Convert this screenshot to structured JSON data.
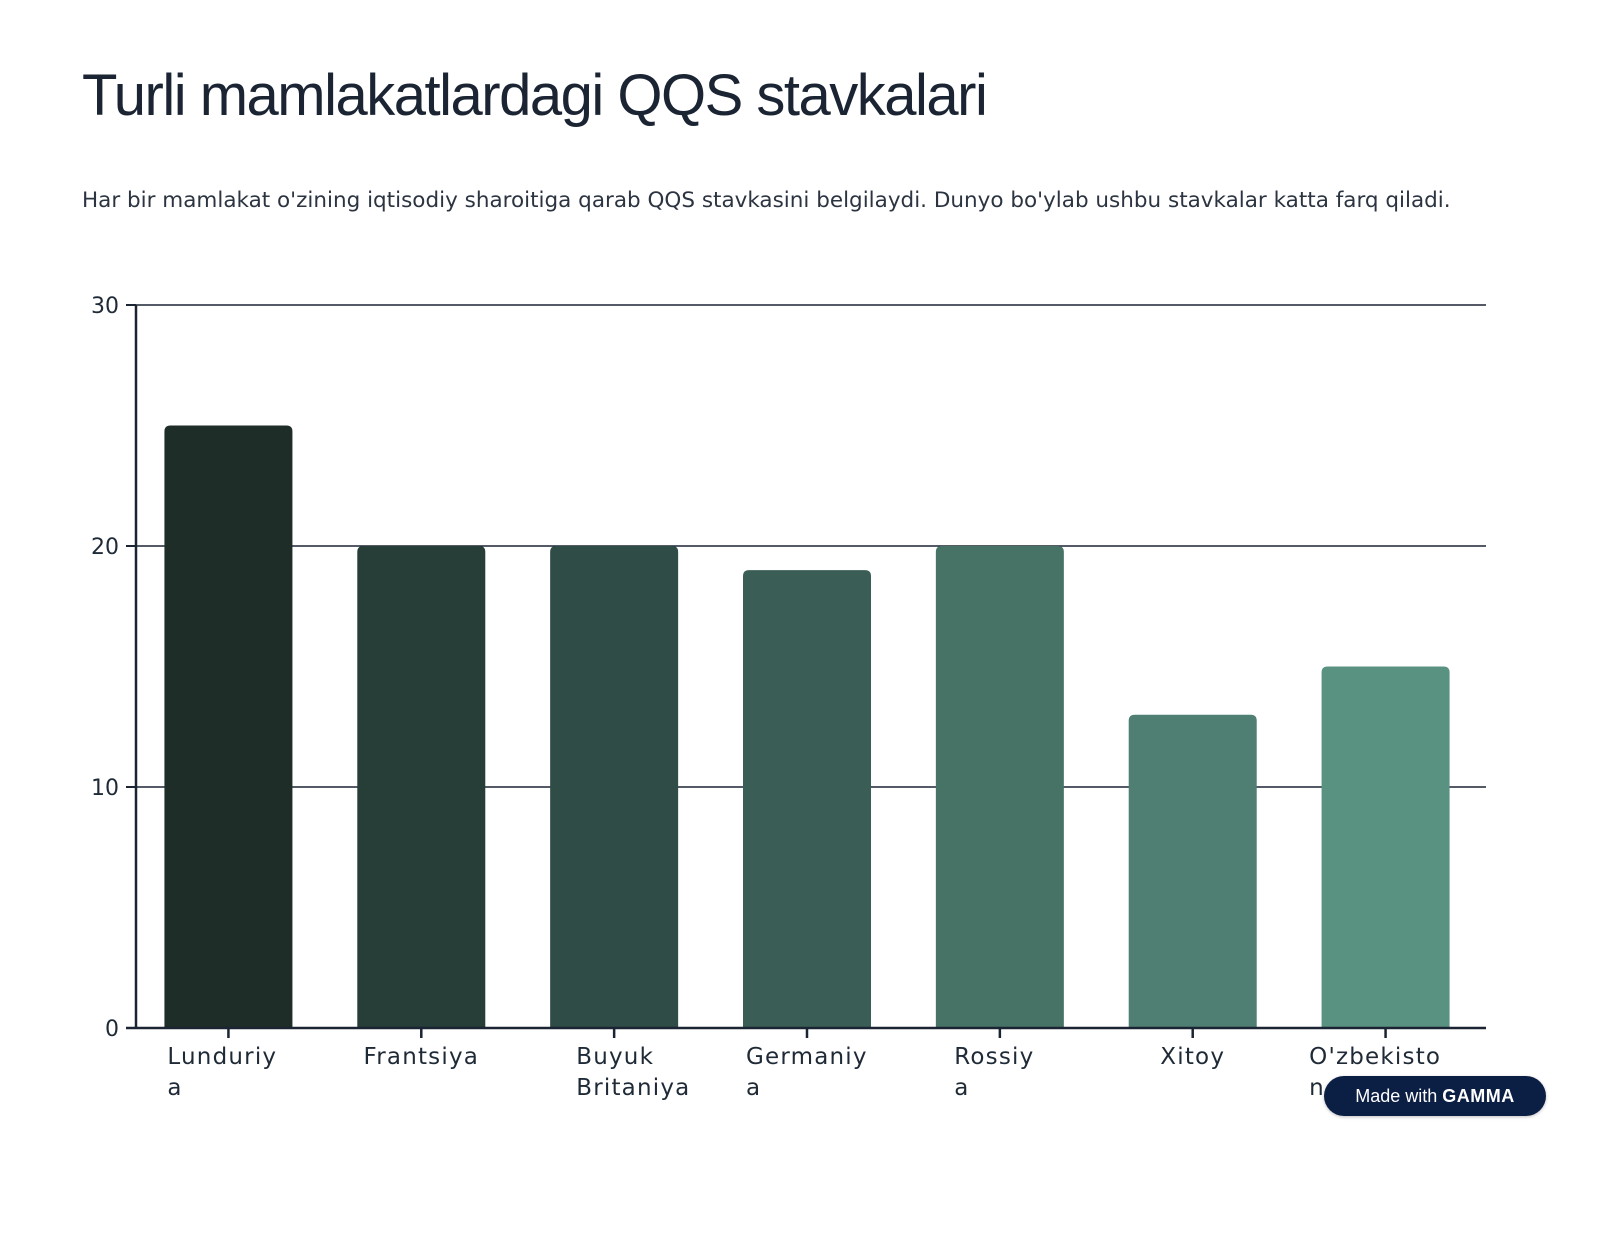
{
  "page": {
    "title": "Turli mamlakatlardagi QQS stavkalari",
    "subtitle": "Har bir mamlakat o'zining iqtisodiy sharoitiga qarab QQS stavkasini belgilaydi. Dunyo bo'ylab ushbu stavkalar katta farq qiladi."
  },
  "badge": {
    "prefix": "Made with",
    "brand": "GAMMA"
  },
  "chart_data": {
    "type": "bar",
    "title": "",
    "xlabel": "",
    "ylabel": "",
    "categories": [
      [
        "Lunduriy",
        "a"
      ],
      [
        "Frantsiya"
      ],
      [
        "Buyuk",
        "Britaniya"
      ],
      [
        "Germaniy",
        "a"
      ],
      [
        "Rossiy",
        "a"
      ],
      [
        "Xitoy"
      ],
      [
        "O'zbekisto",
        "n"
      ]
    ],
    "values": [
      25,
      20,
      20,
      19,
      20,
      13,
      15
    ],
    "ylim": [
      0,
      30
    ],
    "yticks": [
      "0",
      "10",
      "20",
      "30"
    ],
    "grid": true,
    "colors": [
      "#1f2d28",
      "#263d38",
      "#2f4d46",
      "#3a5e55",
      "#477367",
      "#4e7f72",
      "#5a9282"
    ],
    "axis_color": "#1b2433"
  }
}
